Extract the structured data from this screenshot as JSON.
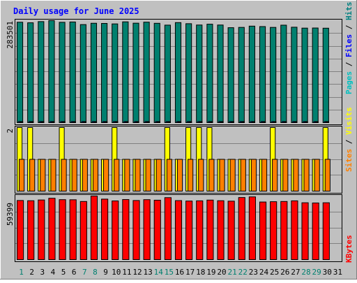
{
  "chart_data": {
    "type": "bar",
    "title": "Daily usage for June 2025",
    "days": [
      "1",
      "2",
      "3",
      "4",
      "5",
      "6",
      "7",
      "8",
      "9",
      "10",
      "11",
      "12",
      "13",
      "14",
      "15",
      "16",
      "17",
      "18",
      "19",
      "20",
      "21",
      "22",
      "23",
      "24",
      "25",
      "26",
      "27",
      "28",
      "29",
      "30",
      "31"
    ],
    "weekend_days": [
      "1",
      "7",
      "8",
      "14",
      "15",
      "21",
      "22",
      "28",
      "29"
    ],
    "panels": [
      {
        "id": "hits",
        "max_label": "283501",
        "ylim": [
          0,
          283501
        ],
        "y_title_parts": [
          {
            "text": "Pages",
            "color": "#00c0c0"
          },
          {
            "text": " / ",
            "color": "#000000"
          },
          {
            "text": "Files",
            "color": "#0000ff"
          },
          {
            "text": " / ",
            "color": "#000000"
          },
          {
            "text": "Hits",
            "color": "#008080"
          }
        ],
        "series": [
          {
            "color": "#00806f",
            "values": [
              279000,
              277500,
              280800,
              283501,
              278800,
              279700,
              272500,
              276200,
              275700,
              274400,
              280100,
              276400,
              279200,
              276100,
              271000,
              278000,
              275000,
              271300,
              273600,
              271300,
              263900,
              264700,
              268200,
              267000,
              264700,
              270900,
              265200,
              262700,
              263000,
              262500,
              0
            ]
          },
          {
            "color": "#0000ff",
            "values": [
              3000,
              3000,
              3000,
              3000,
              3000,
              3000,
              3000,
              3000,
              3000,
              3000,
              3000,
              3000,
              3000,
              3000,
              3000,
              3000,
              3000,
              3000,
              3000,
              3000,
              3000,
              3000,
              3000,
              3000,
              3000,
              3000,
              3000,
              3000,
              3000,
              3000,
              0
            ]
          },
          {
            "color": "#00c0c0",
            "values": [
              2000,
              2000,
              2000,
              2000,
              2000,
              2000,
              2000,
              2000,
              2000,
              2000,
              2000,
              2000,
              2000,
              2000,
              2000,
              2000,
              2000,
              2000,
              2000,
              2000,
              2000,
              2000,
              2000,
              2000,
              2000,
              2000,
              2000,
              2000,
              2000,
              2000,
              0
            ]
          }
        ]
      },
      {
        "id": "visits",
        "max_label": "2",
        "ylim": [
          0,
          2
        ],
        "y_title_parts": [
          {
            "text": "Sites",
            "color": "#ff8000"
          },
          {
            "text": " / ",
            "color": "#000000"
          },
          {
            "text": "Visits",
            "color": "#ffff00"
          }
        ],
        "series": [
          {
            "color": "#ffff00",
            "values": [
              2,
              2,
              1,
              1,
              2,
              1,
              1,
              1,
              1,
              2,
              1,
              1,
              1,
              1,
              2,
              1,
              2,
              2,
              2,
              1,
              1,
              1,
              1,
              1,
              2,
              1,
              1,
              1,
              1,
              2,
              0
            ]
          },
          {
            "color": "#ff8000",
            "values": [
              1,
              1,
              1,
              1,
              1,
              1,
              1,
              1,
              1,
              1,
              1,
              1,
              1,
              1,
              1,
              1,
              1,
              1,
              1,
              1,
              1,
              1,
              1,
              1,
              1,
              1,
              1,
              1,
              1,
              1,
              0
            ]
          }
        ]
      },
      {
        "id": "kbytes",
        "max_label": "59399",
        "ylim": [
          0,
          59399
        ],
        "y_title_parts": [
          {
            "text": "KBytes",
            "color": "#ff0000"
          }
        ],
        "series": [
          {
            "color": "#ff0000",
            "values": [
              55200,
              55000,
              55700,
              57300,
              56000,
              55900,
              54300,
              59399,
              56500,
              54800,
              56100,
              55200,
              56000,
              55500,
              57900,
              55100,
              54700,
              54900,
              55600,
              55000,
              54600,
              58000,
              58600,
              53800,
              54100,
              54300,
              54900,
              53100,
              52900,
              53100,
              0
            ]
          }
        ]
      }
    ],
    "colors": {
      "background": "#c0c0c0",
      "title": "#0000ff",
      "weekday_label": "#000000",
      "weekend_label": "#00806f",
      "gridline": "#808080"
    }
  }
}
